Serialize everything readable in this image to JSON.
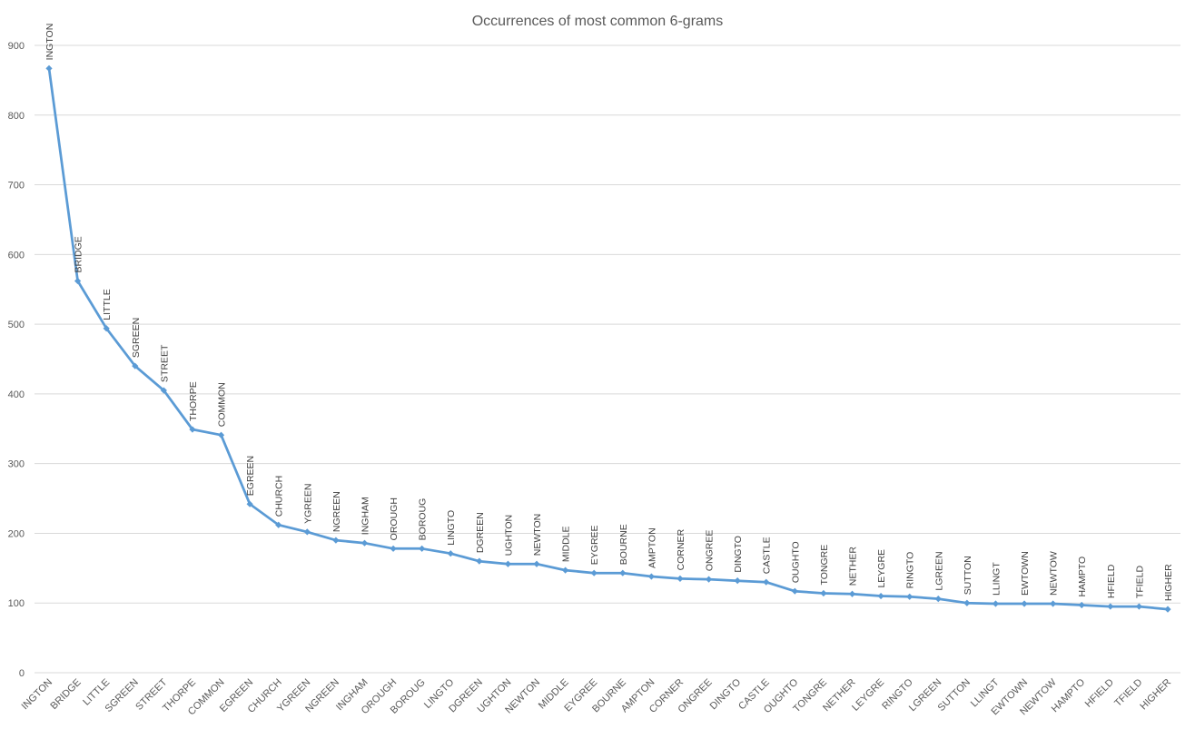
{
  "chart_data": {
    "type": "line",
    "title": "Occurrences of most common 6-grams",
    "xlabel": "",
    "ylabel": "",
    "ylim": [
      0,
      900
    ],
    "yticks": [
      0,
      100,
      200,
      300,
      400,
      500,
      600,
      700,
      800,
      900
    ],
    "grid": true,
    "legend": "none",
    "line_color": "#5b9bd5",
    "categories": [
      "INGTON",
      "BRIDGE",
      "LITTLE",
      "SGREEN",
      "STREET",
      "THORPE",
      "COMMON",
      "EGREEN",
      "CHURCH",
      "YGREEN",
      "NGREEN",
      "INGHAM",
      "OROUGH",
      "BOROUG",
      "LINGTO",
      "DGREEN",
      "UGHTON",
      "NEWTON",
      "MIDDLE",
      "EYGREE",
      "BOURNE",
      "AMPTON",
      "CORNER",
      "ONGREE",
      "DINGTO",
      "CASTLE",
      "OUGHTO",
      "TONGRE",
      "NETHER",
      "LEYGRE",
      "RINGTO",
      "LGREEN",
      "SUTTON",
      "LLINGT",
      "EWTOWN",
      "NEWTOW",
      "HAMPTO",
      "HFIELD",
      "TFIELD",
      "HIGHER"
    ],
    "series": [
      {
        "values": [
          867,
          562,
          494,
          440,
          405,
          349,
          341,
          242,
          212,
          202,
          190,
          186,
          178,
          178,
          171,
          160,
          156,
          156,
          147,
          143,
          143,
          138,
          135,
          134,
          132,
          130,
          117,
          114,
          113,
          110,
          109,
          106,
          100,
          99,
          99,
          99,
          97,
          95,
          95,
          91
        ]
      }
    ]
  }
}
